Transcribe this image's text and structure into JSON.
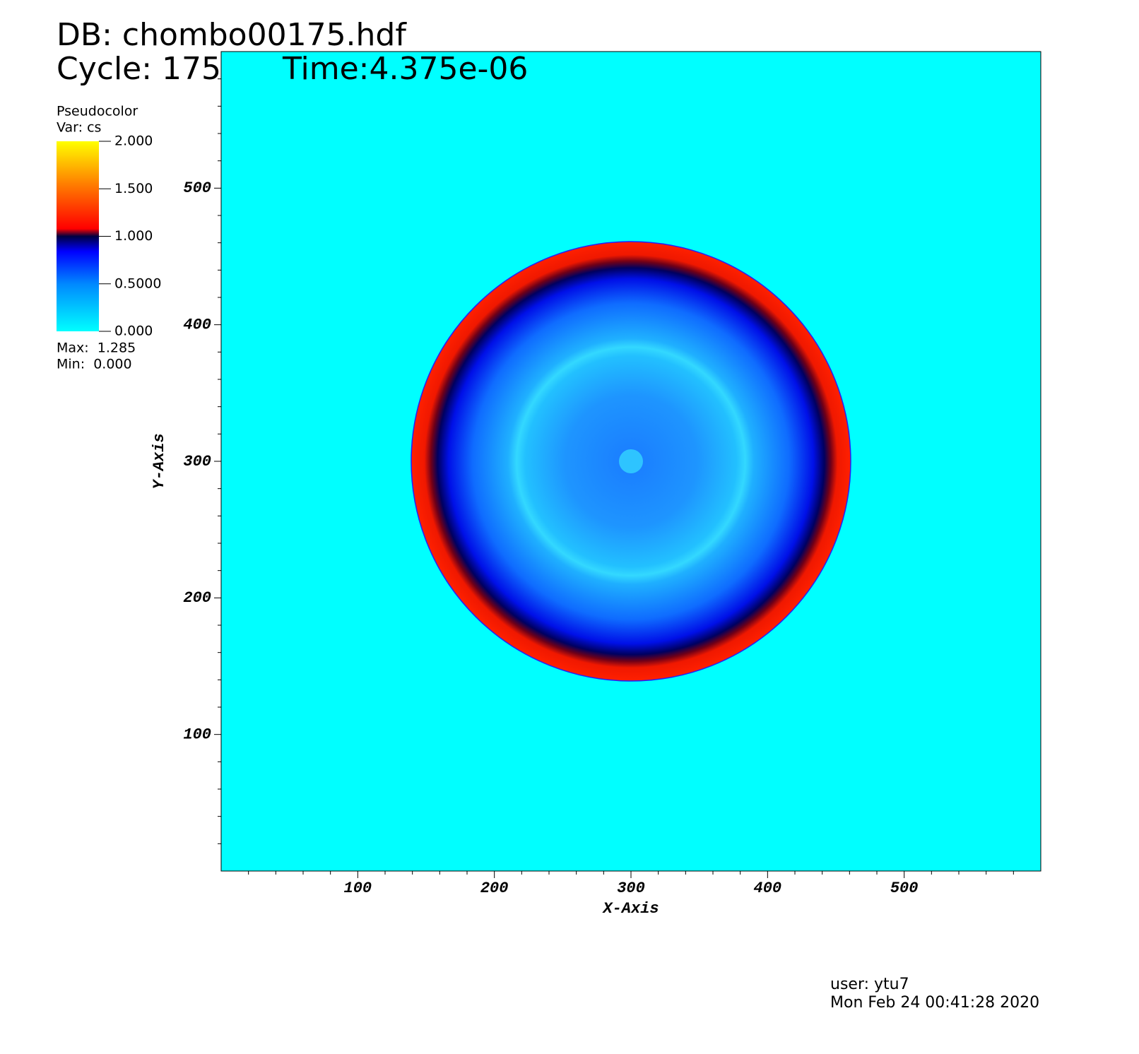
{
  "header": {
    "db": "DB: chombo00175.hdf",
    "cycle": "Cycle: 175",
    "time": "Time:4.375e-06"
  },
  "legend": {
    "plot": "Pseudocolor",
    "var": "Var: cs",
    "range": [
      0,
      2
    ],
    "ticks": [
      {
        "value": 0,
        "label": "0.000"
      },
      {
        "value": 0.5,
        "label": "0.5000"
      },
      {
        "value": 1,
        "label": "1.000"
      },
      {
        "value": 1.5,
        "label": "1.500"
      },
      {
        "value": 2,
        "label": "2.000"
      }
    ],
    "max": "Max:  1.285",
    "min": "Min:  0.000"
  },
  "chart_data": {
    "type": "image",
    "x_label": "X-Axis",
    "y_label": "Y-Axis",
    "xlim": [
      0,
      600
    ],
    "ylim": [
      0,
      600
    ],
    "xticks": [
      100,
      200,
      300,
      400,
      500
    ],
    "yticks": [
      100,
      200,
      300,
      400,
      500
    ]
  },
  "footer": {
    "user": "user: ytu7",
    "date": "Mon Feb 24 00:41:28 2020"
  }
}
